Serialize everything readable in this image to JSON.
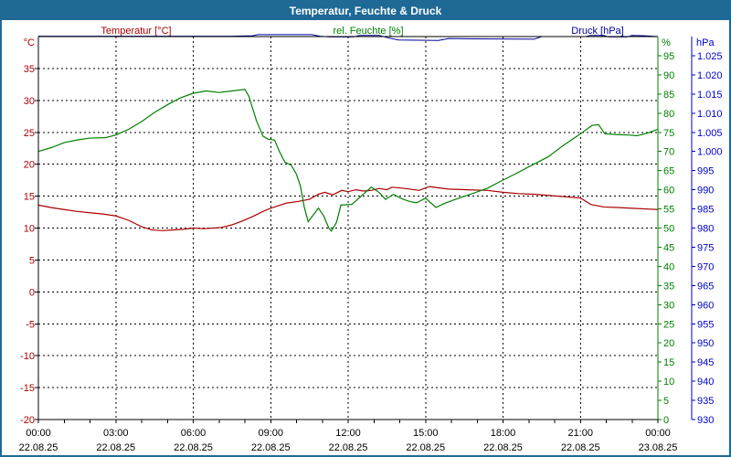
{
  "window": {
    "title": "Temperatur, Feuchte & Druck"
  },
  "colors": {
    "window_border": "#1e6996",
    "title_bar_bg": "#1e6996",
    "title_text": "#ffffff",
    "plot_bg": "#ffffff",
    "axis_frame": "#000000",
    "gridline": "#000000",
    "temperature": "#aa0000",
    "humidity": "#008000",
    "pressure_line": "#000099",
    "pressure_labels": "#0000cc"
  },
  "header": {
    "temperature_label": "Temperatur [°C]",
    "humidity_label": "rel. Feuchte [%]",
    "pressure_label": "Druck [hPa]"
  },
  "chart_data": {
    "type": "line",
    "title": "Temperatur, Feuchte & Druck",
    "x_axis": {
      "unit": "time",
      "range_hours": [
        0,
        24
      ],
      "major_tick_hours": 3,
      "minor_tick_hours": 1,
      "tick_hours": [
        0,
        3,
        6,
        9,
        12,
        15,
        18,
        21,
        24
      ],
      "tick_labels": [
        "00:00",
        "03:00",
        "06:00",
        "09:00",
        "12:00",
        "15:00",
        "18:00",
        "21:00",
        "00:00"
      ],
      "date_labels": [
        "22.08.25",
        "22.08.25",
        "22.08.25",
        "22.08.25",
        "22.08.25",
        "22.08.25",
        "22.08.25",
        "22.08.25",
        "23.08.25"
      ]
    },
    "y_axes": {
      "temperature": {
        "unit": "°C",
        "side": "left",
        "min": -20,
        "max": 40,
        "tick_values": [
          35,
          30,
          25,
          20,
          15,
          10,
          5,
          0,
          -5,
          -10,
          -15,
          -20
        ],
        "tick_labels": [
          "35",
          "30",
          "25",
          "20",
          "15",
          "10",
          "5",
          "0",
          "-5",
          "-10",
          "-15",
          "-20"
        ],
        "gridlines": true
      },
      "humidity": {
        "unit": "%",
        "side": "right",
        "min": 0,
        "max": 100,
        "tick_values": [
          95,
          90,
          85,
          80,
          75,
          70,
          65,
          60,
          55,
          50,
          45,
          40,
          35,
          30,
          25,
          20,
          15,
          10,
          5,
          0
        ],
        "tick_labels": [
          "95",
          "90",
          "85",
          "80",
          "75",
          "70",
          "65",
          "60",
          "55",
          "50",
          "45",
          "40",
          "35",
          "30",
          "25",
          "20",
          "15",
          "10",
          "5",
          "0"
        ],
        "gridlines": false
      },
      "pressure": {
        "unit": "hPa",
        "side": "right-outer",
        "min": 930,
        "max": 1030,
        "tick_values": [
          1025,
          1020,
          1015,
          1010,
          1005,
          1000,
          995,
          990,
          985,
          980,
          975,
          970,
          965,
          960,
          955,
          950,
          945,
          940,
          935,
          930
        ],
        "tick_labels": [
          "1.025",
          "1.020",
          "1.015",
          "1.010",
          "1.005",
          "1.000",
          "995",
          "990",
          "985",
          "980",
          "975",
          "970",
          "965",
          "960",
          "955",
          "950",
          "945",
          "940",
          "935",
          "930"
        ],
        "gridlines": false
      }
    },
    "series": [
      {
        "id": "temperature",
        "name": "Temperatur [°C]",
        "axis": "temperature",
        "color": "#aa0000",
        "points": [
          [
            0,
            13.6
          ],
          [
            0.5,
            13.2
          ],
          [
            1,
            12.9
          ],
          [
            1.5,
            12.6
          ],
          [
            2,
            12.4
          ],
          [
            2.5,
            12.2
          ],
          [
            3,
            11.9
          ],
          [
            3.5,
            11.2
          ],
          [
            4,
            10.2
          ],
          [
            4.4,
            9.7
          ],
          [
            4.8,
            9.6
          ],
          [
            5.2,
            9.7
          ],
          [
            5.6,
            9.8
          ],
          [
            6,
            10
          ],
          [
            6.4,
            9.9
          ],
          [
            6.8,
            10
          ],
          [
            7.1,
            10.1
          ],
          [
            7.5,
            10.5
          ],
          [
            7.9,
            11.1
          ],
          [
            8.3,
            11.8
          ],
          [
            8.7,
            12.6
          ],
          [
            9,
            13.1
          ],
          [
            9.3,
            13.5
          ],
          [
            9.6,
            13.9
          ],
          [
            10.1,
            14.2
          ],
          [
            10.5,
            14.5
          ],
          [
            10.85,
            15.3
          ],
          [
            11.1,
            15.6
          ],
          [
            11.4,
            15.2
          ],
          [
            11.75,
            15.9
          ],
          [
            12,
            15.7
          ],
          [
            12.3,
            16
          ],
          [
            12.6,
            15.8
          ],
          [
            12.9,
            15.9
          ],
          [
            13.2,
            16.2
          ],
          [
            13.5,
            16
          ],
          [
            13.7,
            16.4
          ],
          [
            14.2,
            16.2
          ],
          [
            14.75,
            15.9
          ],
          [
            15.15,
            16.5
          ],
          [
            15.5,
            16.3
          ],
          [
            15.9,
            16.1
          ],
          [
            16.6,
            16
          ],
          [
            17.4,
            15.9
          ],
          [
            18,
            15.6
          ],
          [
            18.6,
            15.4
          ],
          [
            19.2,
            15.3
          ],
          [
            19.8,
            15.1
          ],
          [
            20.4,
            14.9
          ],
          [
            21,
            14.7
          ],
          [
            21.2,
            14.2
          ],
          [
            21.4,
            13.7
          ],
          [
            21.9,
            13.3
          ],
          [
            22.5,
            13.2
          ],
          [
            23,
            13.1
          ],
          [
            23.5,
            13
          ],
          [
            24,
            12.9
          ]
        ]
      },
      {
        "id": "humidity",
        "name": "rel. Feuchte [%]",
        "axis": "humidity",
        "color": "#008000",
        "points": [
          [
            0,
            70
          ],
          [
            0.5,
            71
          ],
          [
            1,
            72.3
          ],
          [
            1.5,
            73
          ],
          [
            2,
            73.5
          ],
          [
            2.6,
            73.6
          ],
          [
            3,
            74.3
          ],
          [
            3.5,
            75.8
          ],
          [
            4,
            77.8
          ],
          [
            4.5,
            80.2
          ],
          [
            5,
            82.2
          ],
          [
            5.5,
            84
          ],
          [
            6,
            85.2
          ],
          [
            6.5,
            85.8
          ],
          [
            7,
            85.4
          ],
          [
            7.5,
            85.8
          ],
          [
            8,
            86.2
          ],
          [
            8.15,
            84.5
          ],
          [
            8.45,
            78
          ],
          [
            8.7,
            74
          ],
          [
            8.9,
            73.2
          ],
          [
            9.15,
            73
          ],
          [
            9.35,
            69.8
          ],
          [
            9.55,
            67.2
          ],
          [
            9.8,
            66.4
          ],
          [
            10,
            64
          ],
          [
            10.15,
            61
          ],
          [
            10.3,
            55.5
          ],
          [
            10.45,
            51.7
          ],
          [
            10.65,
            53.4
          ],
          [
            10.85,
            55.2
          ],
          [
            11.05,
            53.2
          ],
          [
            11.25,
            50
          ],
          [
            11.35,
            49.2
          ],
          [
            11.55,
            51.5
          ],
          [
            11.72,
            56
          ],
          [
            12.15,
            56.2
          ],
          [
            12.5,
            58.3
          ],
          [
            12.9,
            60.7
          ],
          [
            13.2,
            59.3
          ],
          [
            13.45,
            57.5
          ],
          [
            13.75,
            58.8
          ],
          [
            14.1,
            57.6
          ],
          [
            14.4,
            56.9
          ],
          [
            14.65,
            56.6
          ],
          [
            15,
            57.8
          ],
          [
            15.4,
            55.4
          ],
          [
            15.8,
            56.6
          ],
          [
            16.2,
            57.6
          ],
          [
            16.9,
            59.2
          ],
          [
            17.4,
            60.4
          ],
          [
            17.9,
            62.2
          ],
          [
            18.5,
            64.2
          ],
          [
            19,
            66
          ],
          [
            19.75,
            68.6
          ],
          [
            20.3,
            71.4
          ],
          [
            21,
            74.6
          ],
          [
            21.45,
            76.8
          ],
          [
            21.7,
            77
          ],
          [
            21.95,
            74.6
          ],
          [
            22.4,
            74.4
          ],
          [
            22.85,
            74.3
          ],
          [
            23.2,
            74.1
          ],
          [
            23.6,
            74.8
          ],
          [
            24,
            75.8
          ]
        ]
      },
      {
        "id": "pressure",
        "name": "Druck [hPa]",
        "axis": "pressure",
        "color": "#000099",
        "points": [
          [
            0,
            1030.1
          ],
          [
            3,
            1030.1
          ],
          [
            6,
            1030.1
          ],
          [
            7.5,
            1030.1
          ],
          [
            8.3,
            1030.2
          ],
          [
            8.5,
            1030.5
          ],
          [
            9.5,
            1030.5
          ],
          [
            10.6,
            1030.5
          ],
          [
            10.9,
            1030.1
          ],
          [
            11.3,
            1029.9
          ],
          [
            12.2,
            1029.9
          ],
          [
            12.45,
            1030.3
          ],
          [
            13.2,
            1030.3
          ],
          [
            13.6,
            1029.6
          ],
          [
            13.95,
            1029.1
          ],
          [
            15.5,
            1029
          ],
          [
            15.9,
            1029.5
          ],
          [
            17,
            1029.4
          ],
          [
            19.2,
            1029.3
          ],
          [
            19.5,
            1030
          ],
          [
            21.2,
            1030
          ],
          [
            21.4,
            1030.3
          ],
          [
            21.9,
            1030.3
          ],
          [
            22.1,
            1029.9
          ],
          [
            22.8,
            1029.9
          ],
          [
            23,
            1030.3
          ],
          [
            23.5,
            1030.2
          ],
          [
            24,
            1030
          ]
        ]
      }
    ]
  }
}
